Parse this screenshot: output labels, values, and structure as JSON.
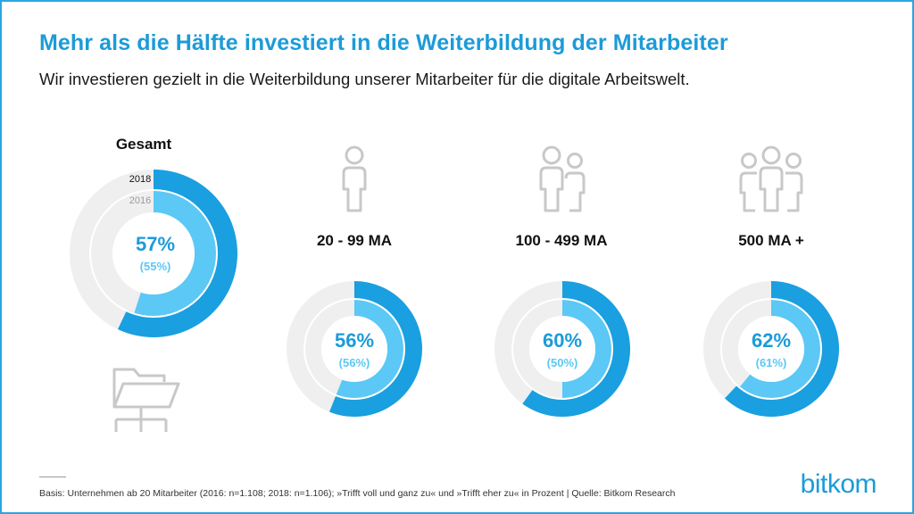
{
  "title": "Mehr als die Hälfte investiert in die Weiterbildung der Mitarbeiter",
  "subtitle": "Wir investieren gezielt in die Weiterbildung unserer Mitarbeiter für die digitale Arbeitswelt.",
  "colors": {
    "accent": "#1c9bd8",
    "outer": "#1a9fe0",
    "inner": "#5bc8f5",
    "track": "#efefef",
    "icon": "#c8c8c8"
  },
  "legend": {
    "year_2018": "2018",
    "year_2016": "2016"
  },
  "chart_data": {
    "type": "pie",
    "series": [
      {
        "name": "2018",
        "values": [
          57,
          56,
          60,
          62
        ]
      },
      {
        "name": "2016",
        "values": [
          55,
          56,
          50,
          61
        ]
      }
    ],
    "categories": [
      "Gesamt",
      "20 - 99 MA",
      "100 - 499 MA",
      "500 MA +"
    ],
    "groups": [
      {
        "label": "Gesamt",
        "value_2018": 57,
        "value_2016": 55,
        "text_2018": "57%",
        "text_2016": "(55%)"
      },
      {
        "label": "20 - 99 MA",
        "value_2018": 56,
        "value_2016": 56,
        "text_2018": "56%",
        "text_2016": "(56%)"
      },
      {
        "label": "100 - 499 MA",
        "value_2018": 60,
        "value_2016": 50,
        "text_2018": "60%",
        "text_2016": "(50%)"
      },
      {
        "label": "500 MA +",
        "value_2018": 62,
        "value_2016": 61,
        "text_2018": "62%",
        "text_2016": "(61%)"
      }
    ]
  },
  "footnote": "Basis: Unternehmen ab 20 Mitarbeiter  (2016: n=1.108; 2018: n=1.106); »Trifft voll und ganz zu« und »Trifft eher zu« in Prozent | Quelle: Bitkom Research",
  "brand": "bitkom",
  "icons": [
    "folder-network-icon",
    "person-icon",
    "two-persons-icon",
    "three-persons-icon"
  ]
}
